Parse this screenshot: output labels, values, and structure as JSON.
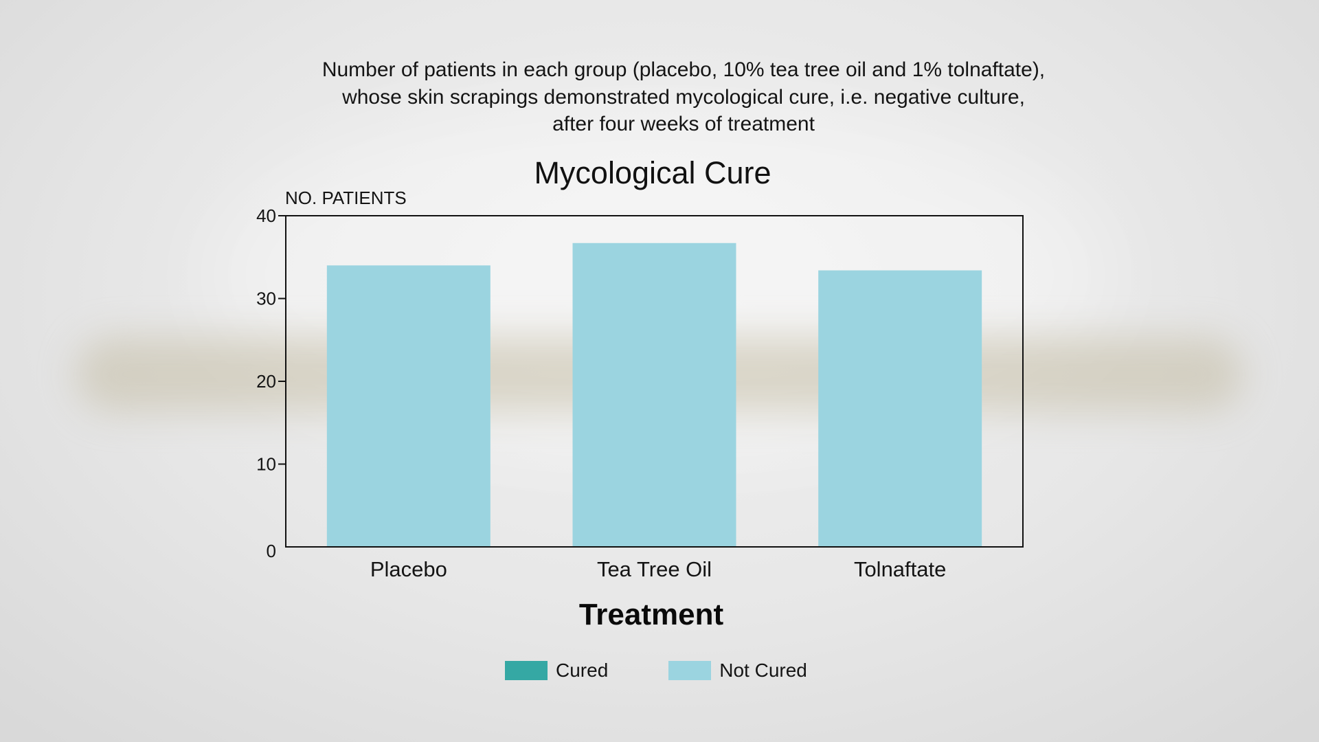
{
  "description_lines": [
    "Number of patients in each group (placebo, 10% tea tree oil and 1% tolnaftate),",
    "whose skin scrapings demonstrated mycological cure, i.e. negative culture,",
    "after four weeks of treatment"
  ],
  "colors": {
    "cured": "#35a8a4",
    "not_cured": "#9bd4e0",
    "axis": "#111111"
  },
  "chart_data": {
    "type": "bar",
    "title": "Mycological Cure",
    "ylabel": "NO. PATIENTS",
    "xlabel": "Treatment",
    "categories": [
      "Placebo",
      "Tea Tree Oil",
      "Tolnaftate"
    ],
    "series": [
      {
        "name": "Cured",
        "values": [
          0,
          0,
          0
        ]
      },
      {
        "name": "Not Cured",
        "values": [
          34,
          36.7,
          33.4
        ]
      }
    ],
    "ylim": [
      0,
      40
    ],
    "yticks": [
      0,
      10,
      20,
      30,
      40
    ],
    "legend": [
      "Cured",
      "Not Cured"
    ],
    "legend_position": "bottom",
    "grid": false
  }
}
